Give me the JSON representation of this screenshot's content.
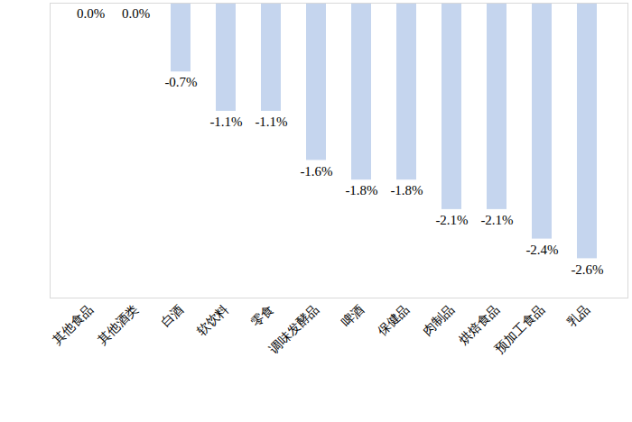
{
  "chart_data": {
    "type": "bar",
    "categories": [
      "其他食品",
      "其他酒类",
      "白酒",
      "软饮料",
      "零食",
      "调味发酵品",
      "啤酒",
      "保健品",
      "肉制品",
      "烘焙食品",
      "预加工食品",
      "乳品"
    ],
    "values": [
      0.0,
      0.0,
      -0.7,
      -1.1,
      -1.1,
      -1.6,
      -1.8,
      -1.8,
      -2.1,
      -2.1,
      -2.4,
      -2.6
    ],
    "value_labels": [
      "0.0%",
      "0.0%",
      "-0.7%",
      "-1.1%",
      "-1.1%",
      "-1.6%",
      "-1.8%",
      "-1.8%",
      "-2.1%",
      "-2.1%",
      "-2.4%",
      "-2.6%"
    ],
    "color": "#c5d5ee",
    "ylim": [
      -3,
      0
    ],
    "grid": false,
    "data_labels": true,
    "tick_labels": "x"
  }
}
